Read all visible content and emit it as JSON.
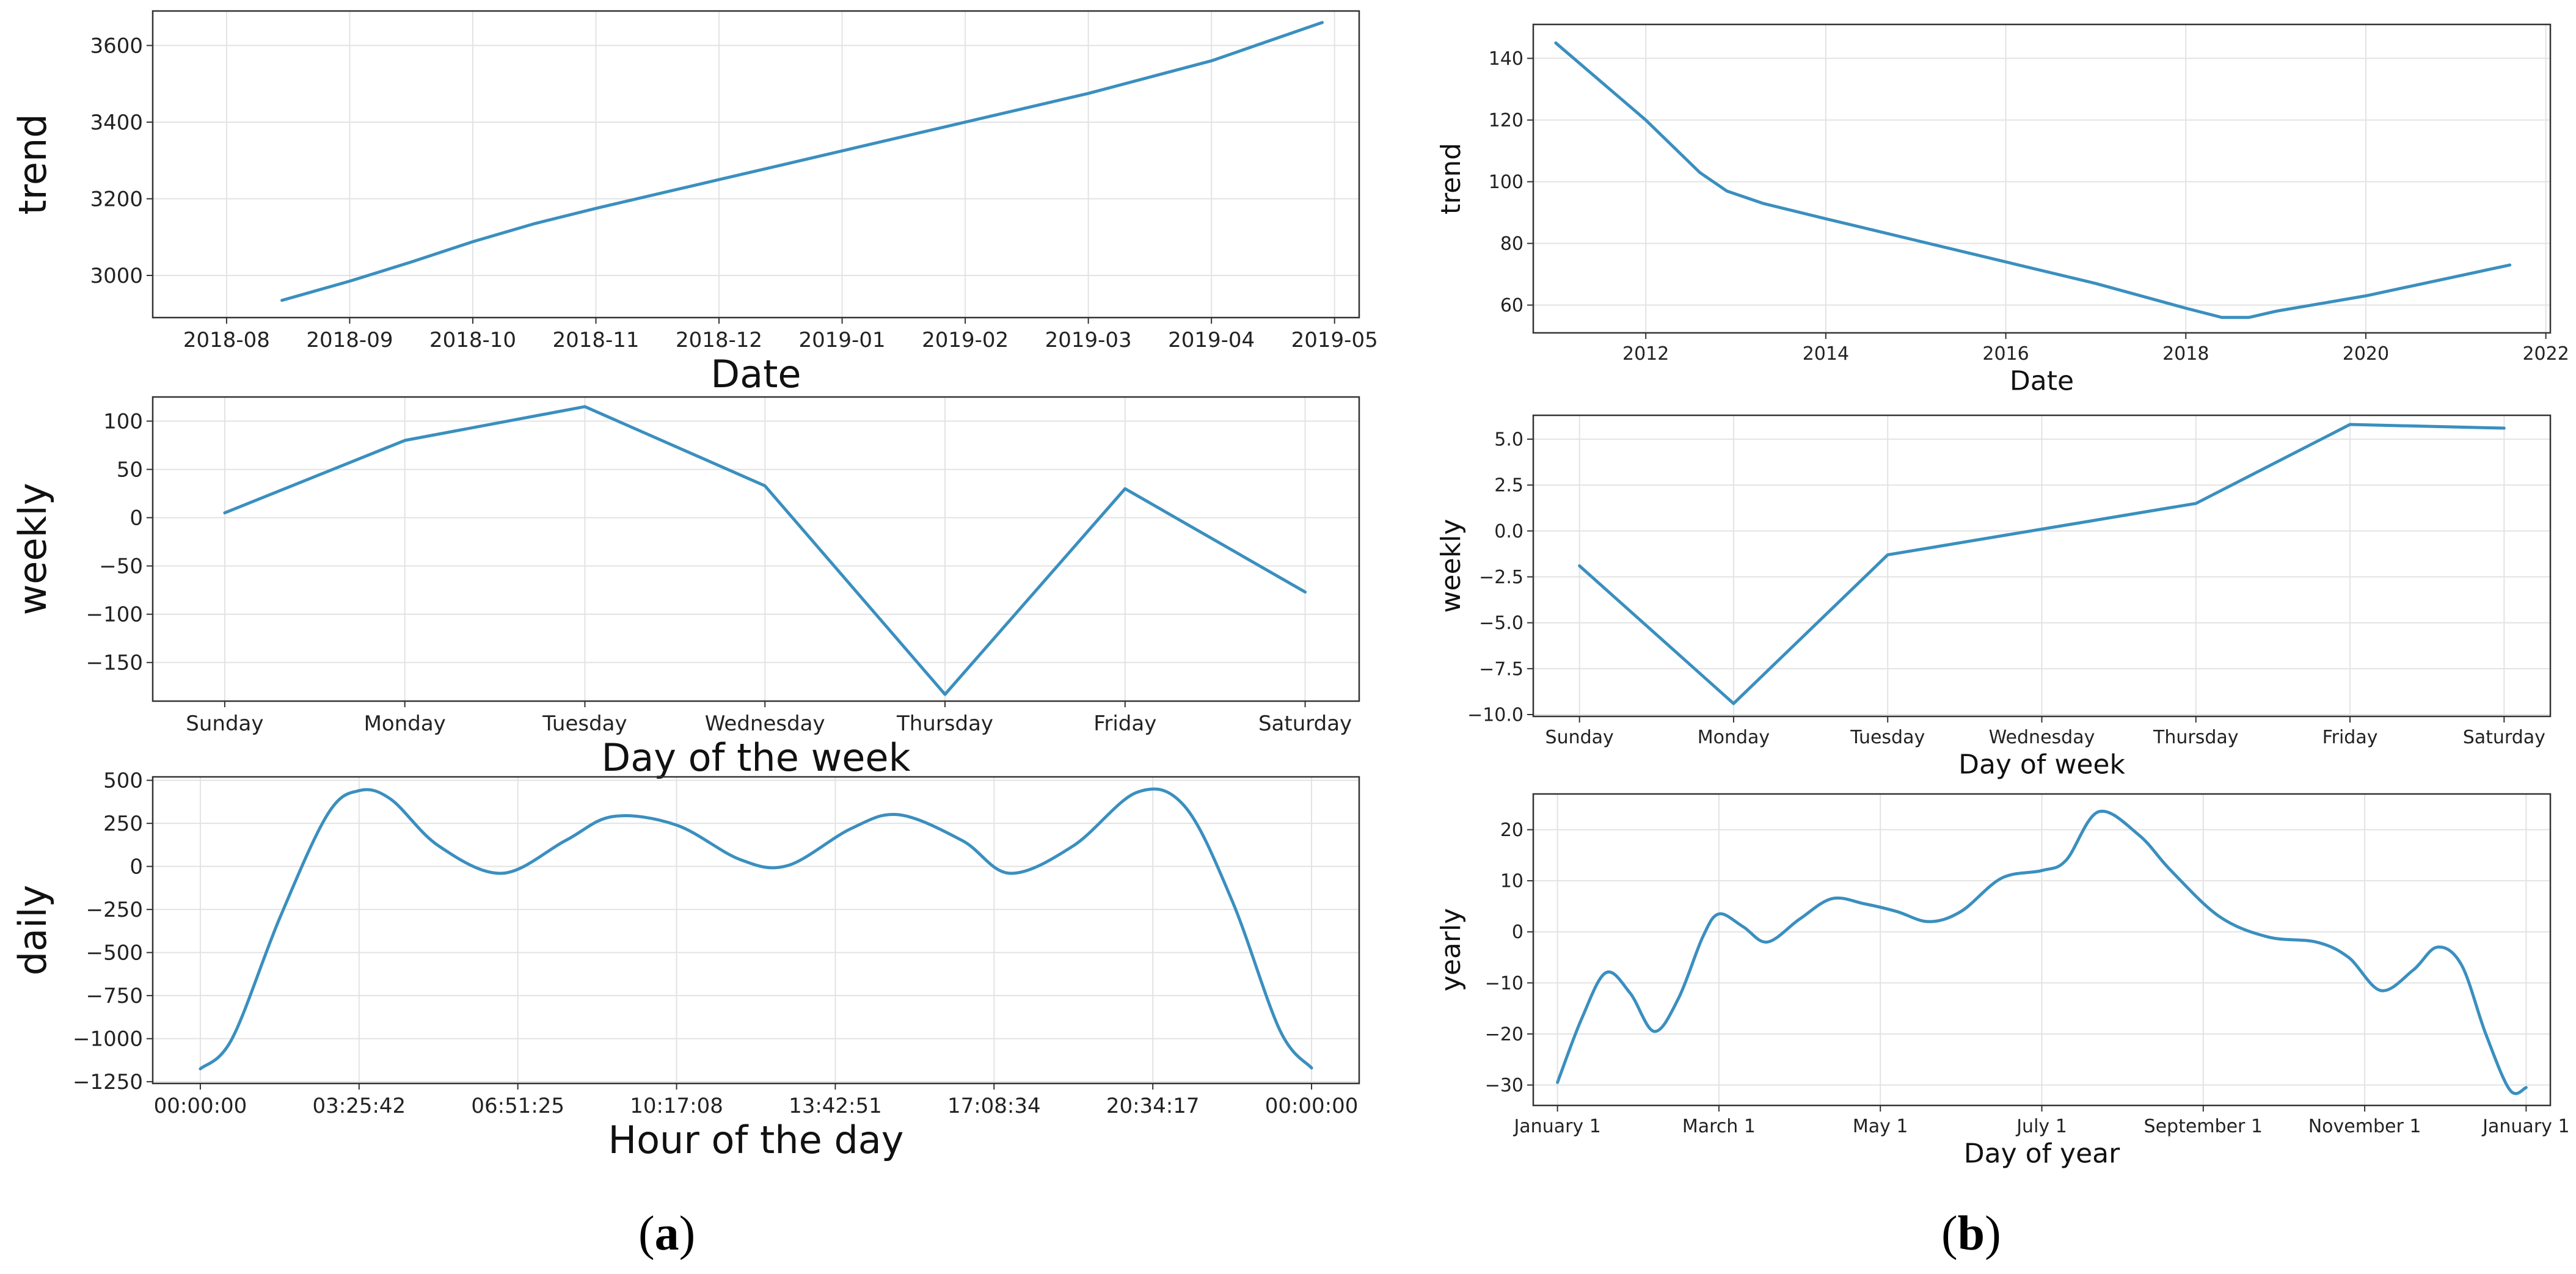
{
  "panel_labels": {
    "a": "a",
    "b": "b"
  },
  "line_color": "#3a8fbf",
  "chart_data": [
    {
      "id": "a-trend",
      "panel": "a",
      "type": "line",
      "title": "",
      "xlabel": "Date",
      "ylabel": "trend",
      "xlim": [
        -0.6,
        9.2
      ],
      "ylim": [
        2890,
        3690
      ],
      "xticks": [
        0,
        1,
        2,
        3,
        4,
        5,
        6,
        7,
        8,
        9
      ],
      "xtick_labels": [
        "2018-08",
        "2018-09",
        "2018-10",
        "2018-11",
        "2018-12",
        "2019-01",
        "2019-02",
        "2019-03",
        "2019-04",
        "2019-05"
      ],
      "yticks": [
        3000,
        3200,
        3400,
        3600
      ],
      "ytick_labels": [
        "3000",
        "3200",
        "3400",
        "3600"
      ],
      "x": [
        0.45,
        1.0,
        1.5,
        2.0,
        2.5,
        3.0,
        4.0,
        5.0,
        6.0,
        7.0,
        8.0,
        8.9
      ],
      "y": [
        2935,
        2985,
        3035,
        3088,
        3135,
        3175,
        3250,
        3325,
        3400,
        3475,
        3560,
        3660
      ]
    },
    {
      "id": "a-weekly",
      "panel": "a",
      "type": "line",
      "title": "",
      "xlabel": "Day of the week",
      "ylabel": "weekly",
      "xlim": [
        -0.4,
        6.3
      ],
      "ylim": [
        -190,
        125
      ],
      "xticks": [
        0,
        1,
        2,
        3,
        4,
        5,
        6
      ],
      "xtick_labels": [
        "Sunday",
        "Monday",
        "Tuesday",
        "Wednesday",
        "Thursday",
        "Friday",
        "Saturday"
      ],
      "yticks": [
        100,
        50,
        0,
        -50,
        -100,
        -150
      ],
      "ytick_labels": [
        "100",
        "50",
        "0",
        "−50",
        "−100",
        "−150"
      ],
      "x": [
        0,
        1,
        2,
        3,
        4,
        5,
        6
      ],
      "y": [
        5,
        80,
        115,
        33,
        -183,
        30,
        -77
      ]
    },
    {
      "id": "a-daily",
      "panel": "a",
      "type": "line",
      "title": "",
      "xlabel": "Hour of the day",
      "ylabel": "daily",
      "xlim": [
        -0.3,
        7.3
      ],
      "ylim": [
        -1260,
        520
      ],
      "xticks": [
        0,
        1,
        2,
        3,
        4,
        5,
        6,
        7
      ],
      "xtick_labels": [
        "00:00:00",
        "03:25:42",
        "06:51:25",
        "10:17:08",
        "13:42:51",
        "17:08:34",
        "20:34:17",
        "00:00:00"
      ],
      "yticks": [
        500,
        250,
        0,
        -250,
        -500,
        -750,
        -1000,
        -1250
      ],
      "ytick_labels": [
        "500",
        "250",
        "0",
        "−250",
        "−500",
        "−750",
        "−1000",
        "−1250"
      ],
      "x": [
        0,
        0.2,
        0.5,
        0.8,
        1.0,
        1.2,
        1.5,
        1.9,
        2.3,
        2.6,
        3.0,
        3.4,
        3.7,
        4.1,
        4.4,
        4.8,
        5.1,
        5.5,
        5.9,
        6.2,
        6.5,
        6.8,
        7.0
      ],
      "y": [
        -1175,
        -1000,
        -300,
        300,
        440,
        390,
        120,
        -40,
        150,
        290,
        240,
        40,
        5,
        220,
        300,
        150,
        -40,
        120,
        430,
        350,
        -200,
        -950,
        -1170
      ]
    },
    {
      "id": "b-trend",
      "panel": "b",
      "type": "line",
      "title": "",
      "xlabel": "Date",
      "ylabel": "trend",
      "xlim": [
        2010.75,
        2022.05
      ],
      "ylim": [
        51,
        151
      ],
      "xticks": [
        2012,
        2014,
        2016,
        2018,
        2020,
        2022
      ],
      "xtick_labels": [
        "2012",
        "2014",
        "2016",
        "2018",
        "2020",
        "2022"
      ],
      "yticks": [
        60,
        80,
        100,
        120,
        140
      ],
      "ytick_labels": [
        "60",
        "80",
        "100",
        "120",
        "140"
      ],
      "x": [
        2011.0,
        2012.0,
        2012.6,
        2012.9,
        2013.3,
        2014.0,
        2015.0,
        2016.0,
        2017.0,
        2018.0,
        2018.4,
        2018.7,
        2019.0,
        2020.0,
        2021.6
      ],
      "y": [
        145,
        120,
        103,
        97,
        93,
        88,
        81,
        74,
        67,
        59,
        56,
        56,
        58,
        63,
        73
      ]
    },
    {
      "id": "b-weekly",
      "panel": "b",
      "type": "line",
      "title": "",
      "xlabel": "Day of week",
      "ylabel": "weekly",
      "xlim": [
        -0.3,
        6.3
      ],
      "ylim": [
        -10.1,
        6.3
      ],
      "xticks": [
        0,
        1,
        2,
        3,
        4,
        5,
        6
      ],
      "xtick_labels": [
        "Sunday",
        "Monday",
        "Tuesday",
        "Wednesday",
        "Thursday",
        "Friday",
        "Saturday"
      ],
      "yticks": [
        5.0,
        2.5,
        0.0,
        -2.5,
        -5.0,
        -7.5,
        -10.0
      ],
      "ytick_labels": [
        "5.0",
        "2.5",
        "0.0",
        "−2.5",
        "−5.0",
        "−7.5",
        "−10.0"
      ],
      "x": [
        0,
        1,
        2,
        3,
        4,
        5,
        6
      ],
      "y": [
        -1.9,
        -9.4,
        -1.3,
        0.1,
        1.5,
        5.8,
        5.6
      ]
    },
    {
      "id": "b-yearly",
      "panel": "b",
      "type": "line",
      "title": "",
      "xlabel": "Day of year",
      "ylabel": "yearly",
      "xlim": [
        -0.15,
        6.15
      ],
      "ylim": [
        -34,
        27
      ],
      "xticks": [
        0,
        1,
        2,
        3,
        4,
        5,
        6
      ],
      "xtick_labels": [
        "January 1",
        "March 1",
        "May 1",
        "July 1",
        "September 1",
        "November 1",
        "January 1"
      ],
      "yticks": [
        20,
        10,
        0,
        -10,
        -20,
        -30
      ],
      "ytick_labels": [
        "20",
        "10",
        "0",
        "−10",
        "−20",
        "−30"
      ],
      "x": [
        0,
        0.15,
        0.3,
        0.45,
        0.6,
        0.75,
        0.9,
        1.0,
        1.15,
        1.3,
        1.5,
        1.7,
        1.9,
        2.1,
        2.3,
        2.5,
        2.75,
        3.0,
        3.15,
        3.35,
        3.6,
        3.8,
        4.1,
        4.4,
        4.7,
        4.9,
        5.1,
        5.3,
        5.45,
        5.6,
        5.75,
        5.9,
        6.0
      ],
      "y": [
        -29.5,
        -17,
        -8,
        -12,
        -19.5,
        -13,
        -1,
        3.5,
        1,
        -2,
        2.5,
        6.5,
        5.5,
        4,
        2,
        4,
        10.5,
        12,
        14,
        23.5,
        19,
        12,
        3,
        -1,
        -2,
        -5,
        -11.5,
        -7.5,
        -3,
        -6.5,
        -20,
        -31,
        -30.5
      ]
    }
  ]
}
